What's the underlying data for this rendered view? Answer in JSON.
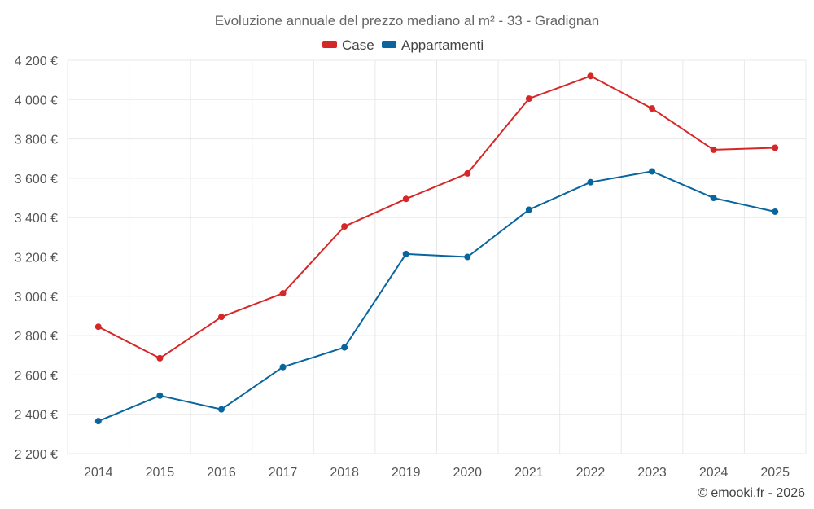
{
  "chart_data": {
    "type": "line",
    "title": "Evoluzione annuale del prezzo mediano al m² - 33 - Gradignan",
    "categories": [
      "2014",
      "2015",
      "2016",
      "2017",
      "2018",
      "2019",
      "2020",
      "2021",
      "2022",
      "2023",
      "2024",
      "2025"
    ],
    "series": [
      {
        "name": "Case",
        "color": "#d62728",
        "values": [
          2845,
          2685,
          2895,
          3015,
          3355,
          3495,
          3625,
          4005,
          4120,
          3955,
          3745,
          3755
        ]
      },
      {
        "name": "Appartamenti",
        "color": "#08659e",
        "values": [
          2365,
          2495,
          2425,
          2640,
          2740,
          3215,
          3200,
          3440,
          3580,
          3635,
          3500,
          3430
        ]
      }
    ],
    "ylim": [
      2200,
      4200
    ],
    "yticks": [
      2200,
      2400,
      2600,
      2800,
      3000,
      3200,
      3400,
      3600,
      3800,
      4000,
      4200
    ],
    "ytick_labels": [
      "2 200 €",
      "2 400 €",
      "2 600 €",
      "2 800 €",
      "3 000 €",
      "3 200 €",
      "3 400 €",
      "3 600 €",
      "3 800 €",
      "4 000 €",
      "4 200 €"
    ],
    "xlabel": "",
    "ylabel": "",
    "grid": true,
    "legend_position": "top-center"
  },
  "credit": "© emooki.fr - 2026"
}
